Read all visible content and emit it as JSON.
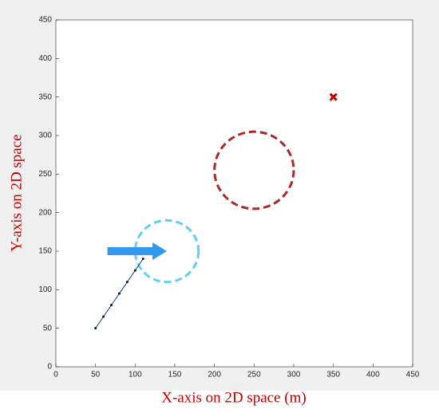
{
  "chart_data": {
    "type": "scatter",
    "x_label": "X-axis on 2D space (m)",
    "y_label": "Y-axis  on  2D  space",
    "xlim": [
      0,
      450
    ],
    "ylim": [
      0,
      450
    ],
    "xticks": [
      0,
      50,
      100,
      150,
      200,
      250,
      300,
      350,
      400,
      450
    ],
    "yticks": [
      0,
      50,
      100,
      150,
      200,
      250,
      300,
      350,
      400,
      450
    ],
    "circles": [
      {
        "center_x": 250,
        "center_y": 255,
        "radius": 50,
        "color": "#a52a2a"
      },
      {
        "center_x": 140,
        "center_y": 150,
        "radius": 40,
        "color": "#5fd0f5"
      }
    ],
    "target": {
      "x": 350,
      "y": 350,
      "color": "#c00000"
    },
    "path": {
      "x": [
        50,
        60,
        70,
        80,
        90,
        100,
        110
      ],
      "y": [
        50,
        65,
        80,
        95,
        110,
        125,
        140
      ],
      "color": "#1f3f7f"
    },
    "arrow": {
      "x": [
        65,
        140
      ],
      "y": [
        150,
        150
      ],
      "color": "#3399ee"
    }
  }
}
